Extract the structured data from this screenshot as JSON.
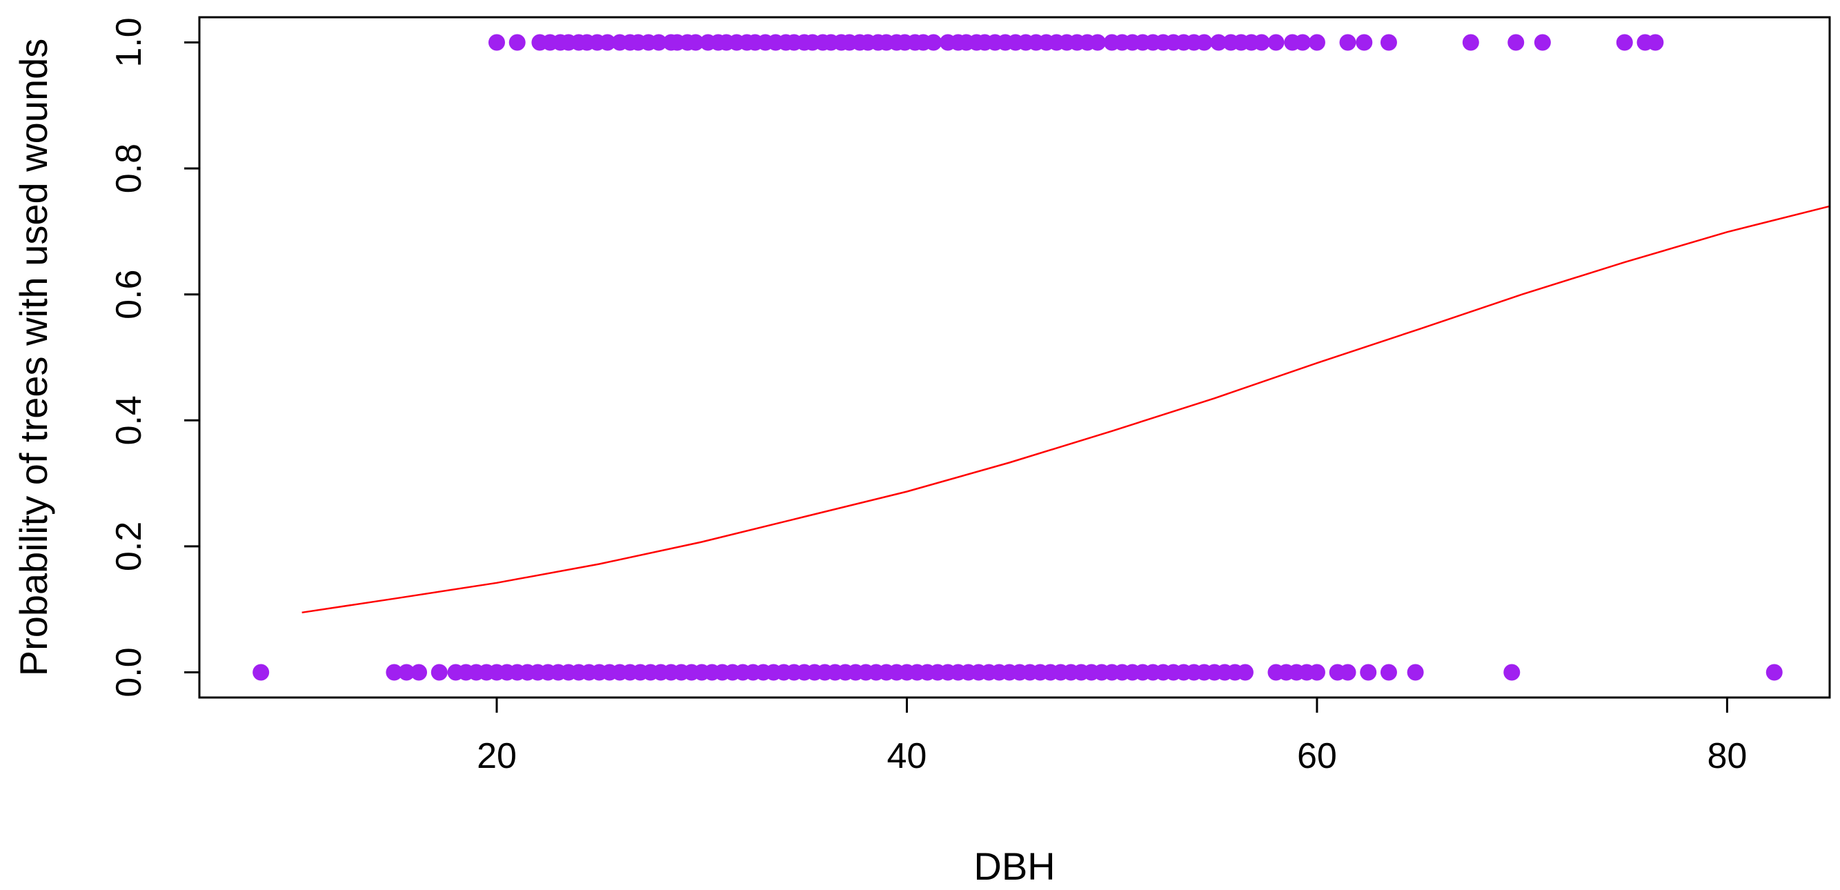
{
  "chart_data": {
    "type": "scatter",
    "title": "",
    "xlabel": "DBH",
    "ylabel": "Probability of trees with used wounds",
    "xlim": [
      5.5,
      85
    ],
    "ylim": [
      -0.04,
      1.04
    ],
    "x_ticks": [
      20,
      40,
      60,
      80
    ],
    "y_ticks": [
      0.0,
      0.2,
      0.4,
      0.6,
      0.8,
      1.0
    ],
    "x_tick_labels": [
      "20",
      "40",
      "60",
      "80"
    ],
    "y_tick_labels": [
      "0.0",
      "0.2",
      "0.4",
      "0.6",
      "0.8",
      "1.0"
    ],
    "grid": false,
    "colors": {
      "points": "#a020f0",
      "curve": "#ff0000",
      "axes": "#000000"
    },
    "series": [
      {
        "type": "scatter",
        "y": 1,
        "x": [
          20.0,
          21.0,
          22.1,
          22.6,
          23.1,
          23.5,
          24.0,
          24.4,
          24.9,
          25.4,
          26.0,
          26.5,
          26.9,
          27.4,
          27.9,
          28.5,
          28.8,
          29.3,
          29.7,
          30.3,
          30.8,
          31.2,
          31.7,
          32.2,
          32.6,
          33.1,
          33.6,
          34.1,
          34.5,
          35.0,
          35.4,
          35.9,
          36.3,
          36.8,
          37.2,
          37.7,
          38.1,
          38.6,
          39.0,
          39.5,
          39.9,
          40.4,
          40.8,
          41.3,
          42.0,
          42.5,
          42.9,
          43.4,
          43.8,
          44.3,
          44.8,
          45.3,
          45.8,
          46.3,
          46.8,
          47.3,
          47.8,
          48.3,
          48.8,
          49.3,
          50.0,
          50.5,
          51.0,
          51.5,
          52.0,
          52.5,
          53.0,
          53.5,
          54.0,
          54.5,
          55.2,
          55.8,
          56.3,
          56.8,
          57.3,
          58.0,
          58.8,
          59.3,
          60.0,
          61.5,
          62.3,
          63.5,
          67.5,
          69.7,
          71.0,
          75.0,
          76.0,
          76.5
        ]
      },
      {
        "type": "scatter",
        "y": 0,
        "x": [
          8.5,
          15.0,
          15.6,
          16.2,
          17.2,
          18.0,
          18.5,
          19.0,
          19.5,
          20.0,
          20.5,
          21.0,
          21.5,
          22.0,
          22.5,
          23.0,
          23.5,
          24.0,
          24.5,
          25.0,
          25.5,
          26.0,
          26.5,
          27.0,
          27.5,
          28.0,
          28.5,
          29.0,
          29.5,
          30.0,
          30.5,
          31.0,
          31.5,
          32.0,
          32.5,
          33.0,
          33.5,
          34.0,
          34.5,
          35.0,
          35.5,
          36.0,
          36.5,
          37.0,
          37.5,
          38.0,
          38.5,
          39.0,
          39.5,
          40.0,
          40.5,
          41.0,
          41.5,
          42.0,
          42.5,
          43.0,
          43.5,
          44.0,
          44.5,
          45.0,
          45.5,
          46.0,
          46.5,
          47.0,
          47.5,
          48.0,
          48.5,
          49.0,
          49.5,
          50.0,
          50.5,
          51.0,
          51.5,
          52.0,
          52.5,
          53.0,
          53.5,
          54.0,
          54.5,
          55.0,
          55.5,
          56.0,
          56.5,
          58.0,
          58.5,
          59.0,
          59.5,
          60.0,
          61.0,
          61.5,
          62.5,
          63.5,
          64.8,
          69.5,
          82.3
        ]
      },
      {
        "type": "line",
        "x": [
          10.5,
          15,
          20,
          25,
          30,
          35,
          40,
          45,
          50,
          55,
          60,
          65,
          70,
          75,
          80,
          85
        ],
        "y": [
          0.095,
          0.117,
          0.142,
          0.172,
          0.207,
          0.247,
          0.287,
          0.333,
          0.383,
          0.435,
          0.491,
          0.545,
          0.6,
          0.651,
          0.699,
          0.74
        ]
      }
    ]
  }
}
